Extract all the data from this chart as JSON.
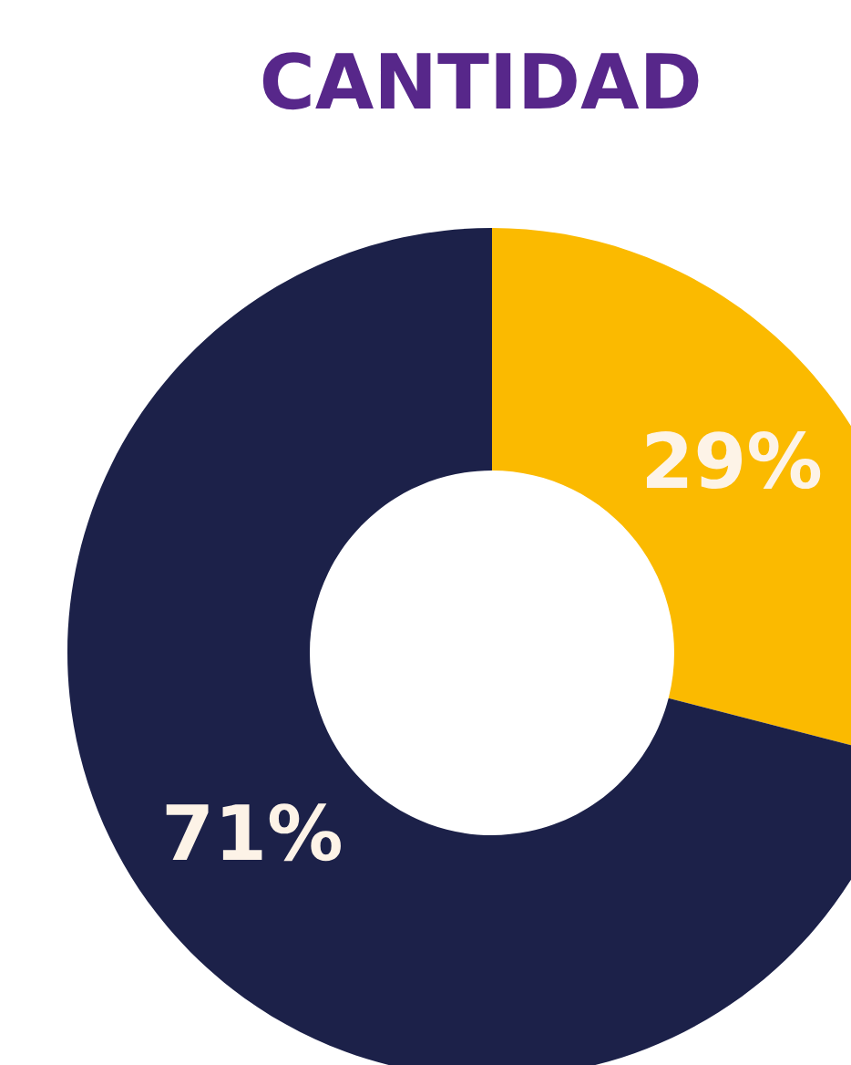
{
  "chart_data": {
    "type": "donut",
    "title": "CANTIDAD",
    "categories": [
      null,
      null
    ],
    "values": [
      29,
      71
    ],
    "colors": [
      "#fbba00",
      "#1c2149"
    ],
    "value_labels": [
      "29%",
      "71%"
    ]
  }
}
